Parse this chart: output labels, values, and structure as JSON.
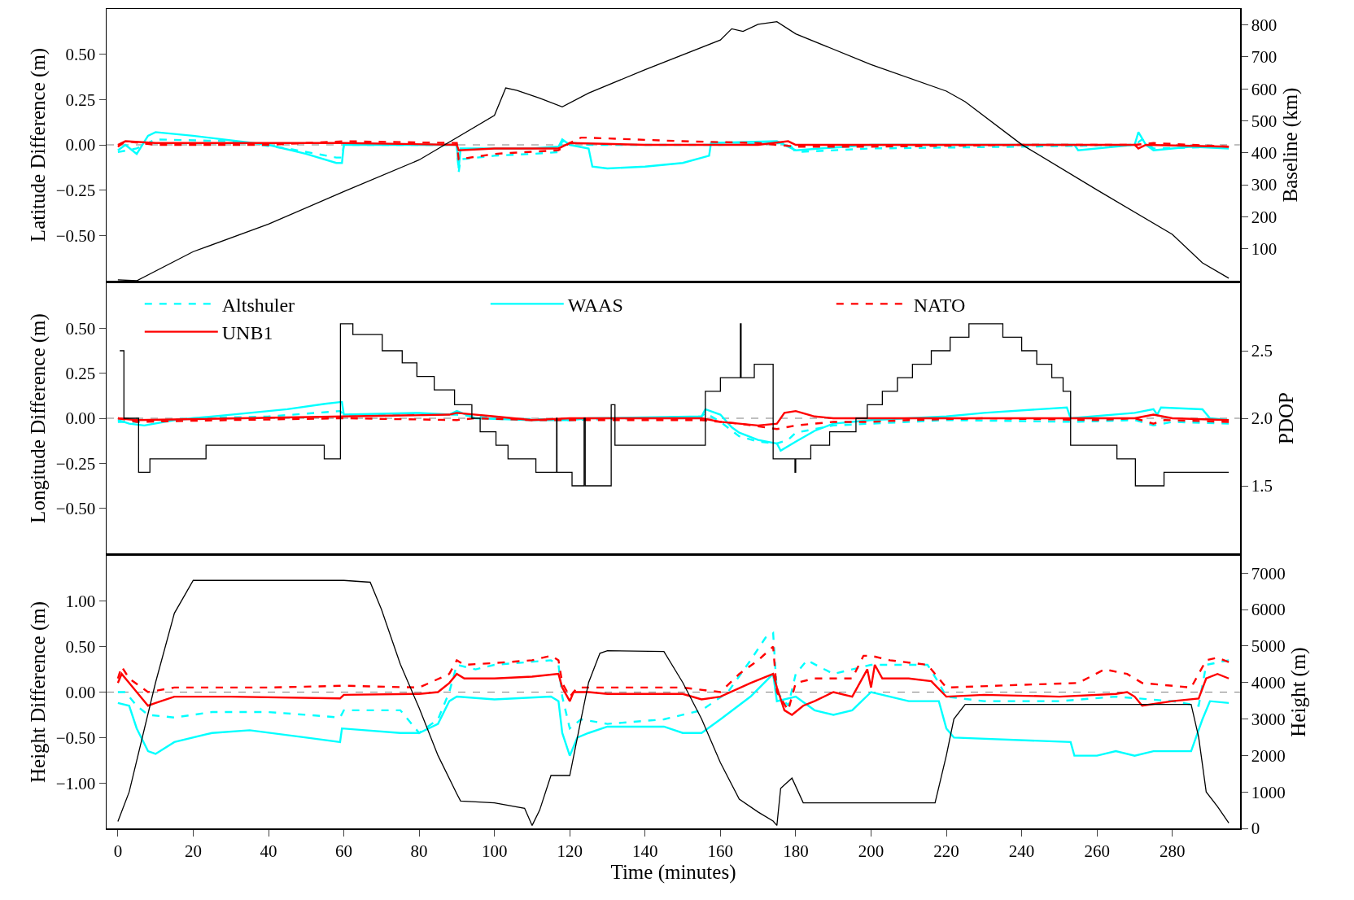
{
  "chart_data": [
    {
      "type": "line",
      "ylabel": "Latitude Difference (m)",
      "y2label": "Baseline (km)",
      "xlim": [
        -3,
        298
      ],
      "ylim": [
        -0.75,
        0.75
      ],
      "yticks": [
        {
          "value": 0.5,
          "label": "0.50"
        },
        {
          "value": 0.25,
          "label": "0.25"
        },
        {
          "value": 0,
          "label": "0.00"
        },
        {
          "value": -0.25,
          "label": "−0.25"
        },
        {
          "value": -0.5,
          "label": "−0.50"
        }
      ],
      "y2lim": [
        0,
        850
      ],
      "y2ticks": [
        100,
        200,
        300,
        400,
        500,
        600,
        700,
        800
      ],
      "tick_labels": "y",
      "legend": false,
      "ref_lines": [
        {
          "axis": "y",
          "value": 0,
          "color": "#808080",
          "line_style": "dashed"
        }
      ],
      "series": [
        {
          "color": "#000000",
          "axis": "y2",
          "line_style": "solid",
          "x": [
            0,
            5,
            20,
            40,
            60,
            80,
            100,
            103,
            106,
            112,
            118,
            125,
            140,
            160,
            163,
            166,
            170,
            175,
            180,
            200,
            220,
            225,
            240,
            260,
            280,
            288,
            295
          ],
          "values": [
            3,
            0,
            91,
            177,
            279,
            378,
            517,
            603,
            595,
            571,
            544,
            587,
            660,
            753,
            788,
            780,
            802,
            810,
            772,
            676,
            593,
            560,
            426,
            284,
            145,
            56,
            8
          ]
        },
        {
          "color": "#00ffff",
          "line_style": "dashed",
          "x": [
            0,
            5,
            10,
            30,
            45,
            58,
            59.5,
            60,
            90,
            90.5,
            91,
            100,
            110,
            117,
            118,
            125,
            160,
            178,
            180,
            200,
            240,
            270,
            272,
            275,
            295
          ],
          "values": [
            -0.04,
            -0.02,
            0.03,
            0.02,
            -0.02,
            -0.07,
            -0.07,
            0,
            0,
            -0.15,
            -0.08,
            -0.06,
            -0.05,
            -0.04,
            0.02,
            0,
            0,
            0.01,
            -0.04,
            -0.02,
            -0.01,
            0,
            0.03,
            -0.02,
            -0.01
          ]
        },
        {
          "color": "#00ffff",
          "line_style": "solid",
          "x": [
            0,
            2,
            5,
            8,
            10,
            20,
            40,
            50,
            58,
            59.5,
            60,
            90,
            90.5,
            91,
            110,
            117,
            118,
            120,
            125,
            126,
            130,
            140,
            150,
            157,
            157.5,
            175,
            180,
            200,
            254,
            255,
            270,
            271,
            273,
            275,
            285,
            295
          ],
          "values": [
            -0.03,
            0,
            -0.05,
            0.05,
            0.07,
            0.05,
            0,
            -0.05,
            -0.1,
            -0.1,
            0,
            0,
            -0.13,
            -0.02,
            -0.02,
            -0.01,
            0.03,
            0,
            -0.02,
            -0.12,
            -0.13,
            -0.12,
            -0.1,
            -0.06,
            0.01,
            0.02,
            -0.03,
            0,
            0,
            -0.03,
            0,
            0.07,
            0,
            -0.03,
            -0.01,
            -0.02
          ]
        },
        {
          "color": "#ff0000",
          "line_style": "dashed",
          "x": [
            0,
            2,
            10,
            40,
            60,
            90,
            90.5,
            100,
            117,
            120,
            123,
            124,
            150,
            170,
            180,
            200,
            240,
            270,
            275,
            295
          ],
          "values": [
            -0.01,
            0.02,
            0,
            0,
            0.02,
            0.01,
            -0.08,
            -0.05,
            -0.03,
            0.01,
            0.04,
            0.04,
            0.02,
            0.01,
            -0.01,
            -0.01,
            0,
            0,
            0.01,
            -0.01
          ]
        },
        {
          "color": "#ff0000",
          "line_style": "solid",
          "x": [
            0,
            2,
            10,
            60,
            90,
            90.5,
            100,
            117,
            120,
            140,
            170,
            178,
            180,
            220,
            270,
            271,
            273,
            295
          ],
          "values": [
            0,
            0.02,
            0.01,
            0.01,
            0,
            -0.03,
            -0.02,
            -0.02,
            0.01,
            0,
            0,
            0.02,
            0,
            0,
            0,
            -0.02,
            0,
            -0.01
          ]
        }
      ]
    },
    {
      "type": "line",
      "ylabel": "Longitude Difference (m)",
      "y2label": "PDOP",
      "xlim": [
        -3,
        298
      ],
      "ylim": [
        -0.75,
        0.75
      ],
      "yticks": [
        {
          "value": 0.5,
          "label": "0.50"
        },
        {
          "value": 0.25,
          "label": "0.25"
        },
        {
          "value": 0,
          "label": "0.00"
        },
        {
          "value": -0.25,
          "label": "−0.25"
        },
        {
          "value": -0.5,
          "label": "−0.50"
        }
      ],
      "y2lim": [
        1,
        3
      ],
      "y2ticks": [
        1.5,
        {
          "value": 2,
          "label": "2.0"
        },
        2.5
      ],
      "tick_labels": "y",
      "legend": "top",
      "ref_lines": [
        {
          "axis": "y",
          "value": 0,
          "color": "#808080",
          "line_style": "dashed"
        }
      ],
      "series": [
        {
          "color": "#000000",
          "axis": "y2",
          "type": "step",
          "line_style": "solid",
          "x": [
            0.5,
            1.6,
            5.5,
            8.5,
            23.4,
            54.8,
            59.1,
            62.4,
            70.2,
            75.5,
            79.4,
            84,
            89.4,
            94,
            96.2,
            100.4,
            103.6,
            111,
            116.5,
            116.6,
            117,
            120.6,
            123.8,
            124.1,
            124.3,
            125.3,
            126,
            131,
            132,
            156,
            160,
            165.3,
            165.5,
            165.7,
            169,
            174,
            179.8,
            180,
            180.2,
            184,
            189,
            196,
            199,
            203,
            207,
            211,
            216,
            221,
            226,
            235,
            240,
            244,
            248,
            251,
            253,
            265.3,
            270.2,
            277.8,
            295
          ],
          "values": [
            2.5,
            2.0,
            1.6,
            1.7,
            1.8,
            1.7,
            2.7,
            2.62,
            2.5,
            2.41,
            2.31,
            2.21,
            2.1,
            2.0,
            1.9,
            1.8,
            1.7,
            1.6,
            2.0,
            1.6,
            1.6,
            1.5,
            2.0,
            1.5,
            1.5,
            1.5,
            1.5,
            2.1,
            1.8,
            2.2,
            2.3,
            2.7,
            2.3,
            2.3,
            2.4,
            1.7,
            1.6,
            1.7,
            1.7,
            1.8,
            1.9,
            2.0,
            2.1,
            2.2,
            2.3,
            2.4,
            2.5,
            2.6,
            2.7,
            2.6,
            2.5,
            2.4,
            2.3,
            2.2,
            1.8,
            1.7,
            1.5,
            1.6,
            1.6
          ]
        },
        {
          "name": "Altshuler",
          "color": "#00ffff",
          "line_style": "dashed",
          "x": [
            0,
            5,
            20,
            40,
            59,
            60,
            88,
            90,
            100,
            120,
            155,
            156,
            160,
            165,
            170,
            175,
            178,
            180,
            185,
            190,
            200,
            220,
            253,
            270,
            275,
            280,
            295
          ],
          "values": [
            -0.02,
            -0.02,
            0,
            0.01,
            0.04,
            0.02,
            0.02,
            0.02,
            0,
            -0.01,
            0.01,
            0.03,
            -0.02,
            -0.1,
            -0.13,
            -0.14,
            -0.12,
            -0.08,
            -0.06,
            -0.04,
            -0.03,
            -0.01,
            -0.02,
            -0.01,
            -0.04,
            -0.02,
            -0.03
          ]
        },
        {
          "name": "WAAS",
          "color": "#00ffff",
          "line_style": "solid",
          "x": [
            0,
            3,
            7,
            15,
            30,
            45,
            55,
            59,
            59.5,
            60,
            80,
            88,
            90,
            95,
            110,
            120,
            125,
            155,
            156,
            160,
            163,
            165,
            170,
            175,
            176,
            180,
            185,
            190,
            200,
            220,
            230,
            252,
            253,
            270,
            275,
            276,
            277,
            288,
            290,
            295
          ],
          "values": [
            -0.01,
            -0.03,
            -0.04,
            -0.01,
            0.02,
            0.05,
            0.08,
            0.09,
            0.09,
            0.02,
            0.03,
            0.02,
            0.04,
            0,
            -0.01,
            -0.01,
            0,
            0.01,
            0.05,
            0.02,
            -0.05,
            -0.08,
            -0.12,
            -0.14,
            -0.18,
            -0.13,
            -0.07,
            -0.03,
            -0.01,
            0.01,
            0.03,
            0.06,
            0,
            0.03,
            0.05,
            0.02,
            0.06,
            0.05,
            0,
            -0.01
          ]
        },
        {
          "name": "NATO",
          "color": "#ff0000",
          "line_style": "dashed",
          "x": [
            0,
            5,
            30,
            60,
            90,
            95,
            110,
            155,
            165,
            175,
            180,
            185,
            190,
            200,
            210,
            230,
            260,
            270,
            275,
            278,
            295
          ],
          "values": [
            0,
            -0.02,
            -0.01,
            0,
            -0.01,
            0,
            -0.01,
            -0.01,
            -0.03,
            -0.06,
            -0.04,
            -0.03,
            -0.02,
            -0.02,
            -0.01,
            0,
            -0.01,
            0,
            -0.03,
            -0.01,
            -0.02
          ]
        },
        {
          "name": "UNB1",
          "color": "#ff0000",
          "line_style": "solid",
          "x": [
            0,
            5,
            60,
            88,
            90,
            100,
            110,
            120,
            155,
            160,
            170,
            175,
            177,
            180,
            185,
            190,
            200,
            220,
            270,
            275,
            280,
            295
          ],
          "values": [
            0,
            -0.01,
            0.01,
            0.02,
            0.03,
            0.01,
            -0.01,
            0,
            0,
            -0.02,
            -0.04,
            -0.03,
            0.03,
            0.04,
            0.01,
            0,
            0,
            0,
            0,
            0.02,
            0,
            -0.01
          ]
        }
      ]
    },
    {
      "type": "line",
      "xlabel": "Time (minutes)",
      "ylabel": "Height Difference (m)",
      "y2label": "Height (m)",
      "xlim": [
        -3,
        298
      ],
      "xticks": [
        0,
        20,
        40,
        60,
        80,
        100,
        120,
        140,
        160,
        180,
        200,
        220,
        240,
        260,
        280
      ],
      "ylim": [
        -1.5,
        1.5
      ],
      "yticks": [
        {
          "value": 1,
          "label": "1.00"
        },
        {
          "value": 0.5,
          "label": "0.50"
        },
        {
          "value": 0,
          "label": "0.00"
        },
        {
          "value": -0.5,
          "label": "−0.50"
        },
        {
          "value": -1,
          "label": "−1.00"
        }
      ],
      "y2lim": [
        0,
        7475
      ],
      "y2ticks": [
        0,
        1000,
        2000,
        3000,
        4000,
        5000,
        6000,
        7000
      ],
      "legend": false,
      "ref_lines": [
        {
          "axis": "y",
          "value": 0,
          "color": "#808080",
          "line_style": "dashed"
        }
      ],
      "series": [
        {
          "color": "#000000",
          "axis": "y2",
          "line_style": "solid",
          "x": [
            0,
            3,
            10,
            15,
            20,
            30,
            60,
            67,
            70,
            75,
            80,
            85,
            90,
            91,
            100,
            108,
            110,
            112,
            115,
            120,
            123,
            125,
            128,
            130,
            145,
            150,
            155,
            160,
            165,
            170,
            174,
            175,
            176,
            179,
            182,
            200,
            217,
            220,
            222,
            225,
            250,
            285,
            287,
            289,
            292,
            295
          ],
          "values": [
            190,
            1000,
            4000,
            5900,
            6800,
            6800,
            6800,
            6750,
            6000,
            4500,
            3300,
            2000,
            950,
            750,
            700,
            550,
            80,
            500,
            1450,
            1450,
            3000,
            4000,
            4800,
            4870,
            4850,
            4000,
            3000,
            1800,
            800,
            450,
            200,
            80,
            1100,
            1380,
            700,
            700,
            700,
            2000,
            3000,
            3400,
            3400,
            3400,
            2500,
            1000,
            600,
            150
          ]
        },
        {
          "color": "#00ffff",
          "line_style": "dashed",
          "x": [
            0,
            2,
            5,
            8,
            15,
            25,
            40,
            50,
            59,
            60,
            75,
            80,
            85,
            88,
            90,
            95,
            100,
            115,
            117,
            118,
            120,
            123,
            130,
            145,
            150,
            155,
            162,
            168,
            172,
            174,
            175,
            178,
            180,
            183,
            190,
            200,
            215,
            218,
            220,
            230,
            250,
            265,
            280,
            287,
            289,
            295
          ],
          "values": [
            0,
            0,
            -0.15,
            -0.25,
            -0.28,
            -0.22,
            -0.22,
            -0.25,
            -0.28,
            -0.2,
            -0.2,
            -0.45,
            -0.3,
            0,
            0.3,
            0.25,
            0.3,
            0.35,
            0.3,
            -0.05,
            -0.4,
            -0.3,
            -0.35,
            -0.3,
            -0.25,
            -0.2,
            0,
            0.35,
            0.6,
            0.65,
            0,
            -0.15,
            0.2,
            0.35,
            0.2,
            0.3,
            0.3,
            0.1,
            -0.05,
            -0.1,
            -0.1,
            -0.05,
            -0.1,
            -0.15,
            0.3,
            0.35
          ]
        },
        {
          "color": "#00ffff",
          "line_style": "solid",
          "x": [
            0,
            3,
            5,
            8,
            10,
            15,
            25,
            35,
            50,
            59,
            59.5,
            75,
            80,
            85,
            88,
            90,
            100,
            115,
            117,
            118,
            120,
            122,
            125,
            130,
            145,
            150,
            155,
            160,
            168,
            174,
            175,
            180,
            185,
            190,
            195,
            200,
            210,
            218,
            220,
            222,
            253,
            254,
            260,
            265,
            270,
            275,
            285,
            288,
            290,
            295
          ],
          "values": [
            -0.12,
            -0.15,
            -0.4,
            -0.65,
            -0.68,
            -0.55,
            -0.45,
            -0.42,
            -0.5,
            -0.55,
            -0.4,
            -0.45,
            -0.45,
            -0.35,
            -0.1,
            -0.05,
            -0.08,
            -0.05,
            -0.1,
            -0.45,
            -0.7,
            -0.5,
            -0.45,
            -0.38,
            -0.38,
            -0.45,
            -0.45,
            -0.3,
            -0.05,
            0.2,
            -0.1,
            -0.05,
            -0.2,
            -0.25,
            -0.2,
            0,
            -0.1,
            -0.1,
            -0.4,
            -0.5,
            -0.55,
            -0.7,
            -0.7,
            -0.65,
            -0.7,
            -0.65,
            -0.65,
            -0.3,
            -0.1,
            -0.12
          ]
        },
        {
          "color": "#ff0000",
          "line_style": "dashed",
          "x": [
            0,
            1,
            3,
            8,
            15,
            40,
            60,
            80,
            88,
            90,
            92,
            100,
            110,
            115,
            117,
            118,
            120,
            122,
            125,
            150,
            160,
            165,
            170,
            174,
            175,
            178,
            180,
            185,
            195,
            198,
            200,
            205,
            215,
            218,
            220,
            240,
            255,
            262,
            268,
            272,
            285,
            289,
            292,
            295
          ],
          "values": [
            0.15,
            0.28,
            0.15,
            0,
            0.05,
            0.05,
            0.07,
            0.05,
            0.2,
            0.35,
            0.3,
            0.32,
            0.35,
            0.4,
            0.35,
            0.1,
            -0.05,
            0.05,
            0.05,
            0.05,
            0,
            0.2,
            0.35,
            0.5,
            0,
            -0.2,
            0.1,
            0.15,
            0.15,
            0.4,
            0.4,
            0.35,
            0.3,
            0.15,
            0.05,
            0.08,
            0.1,
            0.25,
            0.2,
            0.1,
            0.05,
            0.35,
            0.38,
            0.33
          ]
        },
        {
          "color": "#ff0000",
          "line_style": "solid",
          "x": [
            0,
            1,
            3,
            5,
            8,
            10,
            15,
            30,
            59,
            60,
            80,
            85,
            88,
            90,
            92,
            100,
            110,
            117,
            118,
            120,
            121,
            125,
            130,
            150,
            155,
            160,
            168,
            174,
            175,
            177,
            179,
            182,
            185,
            190,
            195,
            197,
            199,
            200,
            201,
            203,
            210,
            216,
            220,
            230,
            250,
            265,
            268,
            270,
            272,
            280,
            287,
            289,
            292,
            295
          ],
          "values": [
            0.1,
            0.2,
            0.1,
            0,
            -0.15,
            -0.12,
            -0.05,
            -0.05,
            -0.07,
            -0.03,
            -0.02,
            0,
            0.1,
            0.2,
            0.15,
            0.15,
            0.17,
            0.2,
            0.05,
            -0.1,
            0,
            0,
            -0.02,
            -0.02,
            -0.08,
            -0.05,
            0.1,
            0.2,
            0.05,
            -0.2,
            -0.25,
            -0.15,
            -0.1,
            0,
            -0.05,
            0.1,
            0.25,
            0.05,
            0.3,
            0.15,
            0.15,
            0.12,
            -0.05,
            -0.03,
            -0.05,
            -0.02,
            0,
            -0.05,
            -0.15,
            -0.1,
            -0.07,
            0.15,
            0.2,
            0.15
          ]
        }
      ]
    }
  ]
}
